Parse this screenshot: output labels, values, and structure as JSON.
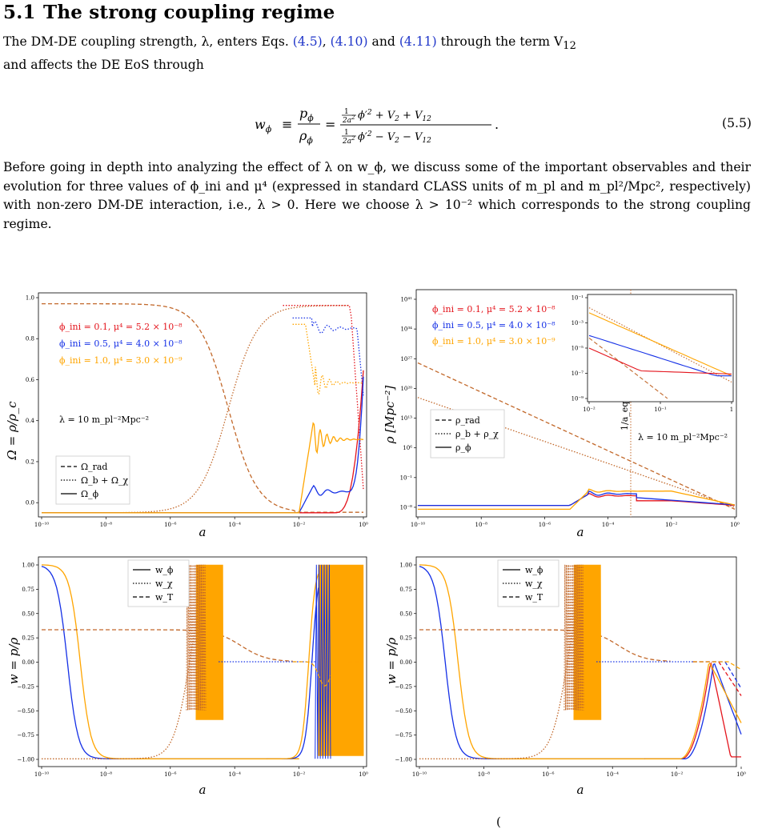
{
  "section": {
    "number": "5.1",
    "title": "The strong coupling regime"
  },
  "para1": {
    "t1": "The DM-DE coupling strength, λ, enters Eqs. ",
    "ref1": "(4.5)",
    "t2": ", ",
    "ref2": "(4.10)",
    "t3": " and ",
    "ref3": "(4.11)",
    "t4": " through the term V",
    "t4sub": "12",
    "t5": "and affects the DE EoS through"
  },
  "equation": {
    "lhs": "w",
    "lhs_sub": "ϕ",
    "label": "(5.5)"
  },
  "para2": {
    "text": "Before going in depth into analyzing the effect of λ on w_ϕ, we discuss some of the important observables and their evolution for three values of ϕ_ini and μ⁴ (expressed in standard CLASS units of m_pl and m_pl²/Mpc², respectively) with non-zero DM-DE interaction, i.e., λ > 0. Here we choose λ > 10⁻² which corresponds to the strong coupling regime."
  },
  "colors": {
    "red": "#e4141c",
    "blue": "#1530e6",
    "orange": "#ffa500",
    "brown": "#c2682a"
  },
  "panels": {
    "omega": {
      "ylabel": "Ω = ρ/ρ_c",
      "xlabel": "a",
      "yticks": [
        "0.0",
        "0.2",
        "0.4",
        "0.6",
        "0.8",
        "1.0"
      ],
      "xticks": [
        "10⁻¹⁰",
        "10⁻⁸",
        "10⁻⁶",
        "10⁻⁴",
        "10⁻²",
        "10⁰"
      ],
      "params": [
        "ϕ_ini = 0.1,  μ⁴ = 5.2 × 10⁻⁸",
        "ϕ_ini = 0.5,  μ⁴ = 4.0 × 10⁻⁸",
        "ϕ_ini = 1.0,  μ⁴ = 3.0 × 10⁻⁹"
      ],
      "lambda": "λ = 10 m_pl⁻²Mpc⁻²",
      "legend": [
        "Ω_rad",
        "Ω_b + Ω_χ",
        "Ω_ϕ"
      ]
    },
    "rho": {
      "ylabel": "ρ [Mpc⁻²]",
      "xlabel": "a",
      "yticks": [
        "10⁻⁸",
        "10⁻¹",
        "10⁶",
        "10¹³",
        "10²⁰",
        "10²⁷",
        "10³⁴",
        "10⁴¹"
      ],
      "xticks": [
        "10⁻¹⁰",
        "10⁻⁸",
        "10⁻⁶",
        "10⁻⁴",
        "10⁻²",
        "10⁰"
      ],
      "params": [
        "ϕ_ini = 0.1,  μ⁴ = 5.2 × 10⁻⁸",
        "ϕ_ini = 0.5,  μ⁴ = 4.0 × 10⁻⁸",
        "ϕ_ini = 1.0,  μ⁴ = 3.0 × 10⁻⁹"
      ],
      "lambda": "λ = 10 m_pl⁻²Mpc⁻²",
      "aeq": "1/a_eq = 3394",
      "legend": [
        "ρ_rad",
        "ρ_b + ρ_χ",
        "ρ_ϕ"
      ],
      "inset_yticks": [
        "10⁻¹",
        "10⁻³",
        "10⁻⁵",
        "10⁻⁷",
        "10⁻⁹"
      ],
      "inset_xticks": [
        "10⁻²",
        "10⁻¹",
        "1"
      ]
    },
    "w_left": {
      "ylabel": "w = p/ρ",
      "xlabel": "a",
      "yticks": [
        "−1.00",
        "−0.75",
        "−0.50",
        "−0.25",
        "0.00",
        "0.25",
        "0.50",
        "0.75",
        "1.00"
      ],
      "xticks": [
        "10⁻¹⁰",
        "10⁻⁸",
        "10⁻⁶",
        "10⁻⁴",
        "10⁻²",
        "10⁰"
      ],
      "legend": [
        "w_ϕ",
        "w_χ",
        "w_T"
      ]
    },
    "w_right": {
      "ylabel": "w = p/ρ",
      "xlabel": "a",
      "yticks": [
        "−1.00",
        "−0.75",
        "−0.50",
        "−0.25",
        "0.00",
        "0.25",
        "0.50",
        "0.75",
        "1.00"
      ],
      "xticks": [
        "10⁻¹⁰",
        "10⁻⁸",
        "10⁻⁶",
        "10⁻⁴",
        "10⁻²",
        "10⁰"
      ],
      "legend": [
        "w_ϕ",
        "w_χ",
        "w_T"
      ]
    }
  },
  "caption_fragment": "(",
  "chart_data": [
    {
      "type": "line",
      "ylabel": "Ω = ρ/ρ_c",
      "xlabel": "a",
      "xscale": "log",
      "xlim": [
        1e-10,
        1
      ],
      "ylim": [
        0,
        1.05
      ],
      "series": [
        {
          "name": "ϕ_ini = 0.1,  μ⁴ = 5.2 × 10⁻⁸",
          "style": "solid",
          "x": [
            -10,
            -3,
            -1.5,
            -1,
            -0.5,
            -0.2,
            0
          ],
          "y": [
            0,
            0,
            0,
            0.02,
            0.1,
            0.4,
            0.7
          ]
        },
        {
          "name": "ϕ_ini = 0.5,  μ⁴ = 4.0 × 10⁻⁸",
          "style": "solid",
          "x": [
            -10,
            -3,
            -1.8,
            -1.5,
            -1.2,
            -0.8,
            -0.3,
            0
          ],
          "y": [
            0,
            0,
            0.08,
            0.15,
            0.1,
            0.11,
            0.2,
            0.65
          ]
        },
        {
          "name": "ϕ_ini = 1.0,  μ⁴ = 3.0 × 10⁻⁹",
          "style": "solid",
          "x": [
            -10,
            -3,
            -2,
            -1.5,
            -1.3,
            -1.0,
            -0.5,
            0
          ],
          "y": [
            0,
            0,
            0.15,
            0.44,
            0.3,
            0.35,
            0.35,
            0.4
          ]
        }
      ]
    },
    {
      "type": "line",
      "ylabel": "ρ [Mpc⁻²]",
      "xlabel": "a",
      "xscale": "log",
      "yscale": "log",
      "xlim": [
        1e-10,
        1
      ],
      "series": [
        {
          "name": "ϕ_ini = 0.1,  μ⁴ = 5.2 × 10⁻⁸",
          "style": "solid",
          "x": [
            -10,
            -5.5,
            -5,
            -4.8,
            -2,
            0
          ],
          "y": [
            -7,
            -7,
            -6,
            -5.5,
            -5.5,
            -7
          ]
        },
        {
          "name": "ϕ_ini = 0.5,  μ⁴ = 4.0 × 10⁻⁸",
          "style": "solid",
          "x": [
            -10,
            -5.5,
            -5,
            -4.8,
            -2,
            0
          ],
          "y": [
            -7,
            -7,
            -5,
            -4.5,
            -5,
            -7
          ]
        },
        {
          "name": "ϕ_ini = 1.0,  μ⁴ = 3.0 × 10⁻⁹",
          "style": "solid",
          "x": [
            -10,
            -5.5,
            -5,
            -4.8,
            -2,
            0
          ],
          "y": [
            -8,
            -8,
            -4,
            -3.5,
            -4.5,
            -7
          ]
        }
      ]
    },
    {
      "type": "line",
      "ylabel": "w = p/ρ",
      "xlabel": "a",
      "xscale": "log",
      "xlim": [
        1e-10,
        1
      ],
      "ylim": [
        -1,
        1
      ],
      "series": [
        {
          "name": "w_ϕ",
          "style": "solid",
          "x": [
            -10,
            -9.5,
            -9,
            -8,
            -2,
            -1.5,
            -1.3
          ],
          "y": [
            1,
            1,
            -1,
            -1,
            -1,
            1,
            -1
          ]
        },
        {
          "name": "w_χ",
          "style": "dotted",
          "x": [
            -10,
            -6,
            -5,
            -4.5,
            -3,
            -1.5,
            0
          ],
          "y": [
            -1,
            -1,
            1,
            0,
            0,
            0,
            0
          ]
        },
        {
          "name": "w_T",
          "style": "dashed",
          "x": [
            -10,
            -6,
            -4,
            -2,
            -1.5,
            -1,
            0
          ],
          "y": [
            0.33,
            0.33,
            0.33,
            0.05,
            -0.2,
            0,
            0
          ]
        }
      ]
    },
    {
      "type": "line",
      "ylabel": "w = p/ρ",
      "xlabel": "a",
      "xscale": "log",
      "xlim": [
        1e-10,
        1
      ],
      "ylim": [
        -1,
        1
      ],
      "series": [
        {
          "name": "w_ϕ",
          "style": "solid",
          "x": [
            -10,
            -9.5,
            -9,
            -8,
            -2,
            -1,
            -0.5,
            0
          ],
          "y": [
            1,
            1,
            -1,
            -1,
            -1,
            0,
            -0.6,
            -0.9
          ]
        },
        {
          "name": "w_χ",
          "style": "dotted",
          "x": [
            -10,
            -6,
            -5,
            -4.5,
            -3,
            -1.5,
            0
          ],
          "y": [
            -1,
            -1,
            1,
            0,
            0,
            0,
            0
          ]
        },
        {
          "name": "w_T",
          "style": "dashed",
          "x": [
            -10,
            -6,
            -4,
            -2,
            -1,
            0
          ],
          "y": [
            0.33,
            0.33,
            0.33,
            0.05,
            0,
            -0.35
          ]
        }
      ]
    }
  ]
}
